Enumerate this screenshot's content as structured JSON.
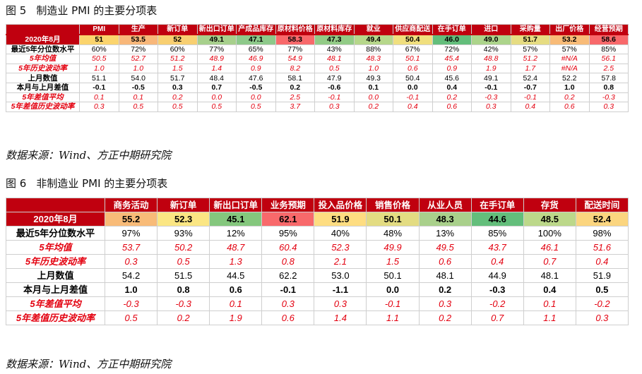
{
  "figure5": {
    "label": "图 5",
    "title": "制造业 PMI 的主要分项表",
    "source": "数据来源：Wind、方正中期研究院",
    "columns": [
      "PMI",
      "生产",
      "新订单",
      "新出口订单",
      "产成品库存",
      "原材料价格",
      "原材料库存",
      "就业",
      "供应商配送",
      "在手订单",
      "进口",
      "采购量",
      "出厂价格",
      "经营预期"
    ],
    "rows": [
      {
        "label": "2020年8月",
        "style": "date",
        "values": [
          "51",
          "53.5",
          "52",
          "49.1",
          "47.1",
          "58.3",
          "47.3",
          "49.4",
          "50.4",
          "46.0",
          "49.0",
          "51.7",
          "53.2",
          "58.6"
        ],
        "colors": [
          "#fbd46d",
          "#f8b77a",
          "#f8cf71",
          "#a7d08c",
          "#8dc98a",
          "#f8696b",
          "#92cb86",
          "#b6d78b",
          "#f0df7e",
          "#63be7b",
          "#acd48b",
          "#e6dc82",
          "#f8bb78",
          "#f8696b"
        ]
      },
      {
        "label": "最近5年分位数水平",
        "style": "plain",
        "values": [
          "60%",
          "72%",
          "60%",
          "77%",
          "65%",
          "77%",
          "43%",
          "88%",
          "67%",
          "72%",
          "42%",
          "57%",
          "57%",
          "85%"
        ]
      },
      {
        "label": "5年均值",
        "style": "red",
        "values": [
          "50.5",
          "52.7",
          "51.2",
          "48.9",
          "46.9",
          "54.9",
          "48.1",
          "48.3",
          "50.1",
          "45.4",
          "48.8",
          "51.2",
          "#N/A",
          "56.1"
        ]
      },
      {
        "label": "5年历史波动率",
        "style": "red",
        "values": [
          "1.0",
          "1.0",
          "1.5",
          "1.4",
          "0.9",
          "8.2",
          "0.5",
          "1.0",
          "0.6",
          "0.9",
          "1.9",
          "1.7",
          "#N/A",
          "2.5"
        ]
      },
      {
        "label": "上月数值",
        "style": "plain",
        "values": [
          "51.1",
          "54.0",
          "51.7",
          "48.4",
          "47.6",
          "58.1",
          "47.9",
          "49.3",
          "50.4",
          "45.6",
          "49.1",
          "52.4",
          "52.2",
          "57.8"
        ]
      },
      {
        "label": "本月与上月差值",
        "style": "bold",
        "values": [
          "-0.1",
          "-0.5",
          "0.3",
          "0.7",
          "-0.5",
          "0.2",
          "-0.6",
          "0.1",
          "0.0",
          "0.4",
          "-0.1",
          "-0.7",
          "1.0",
          "0.8"
        ]
      },
      {
        "label": "5年差值平均",
        "style": "red",
        "values": [
          "0.1",
          "0.1",
          "0.2",
          "0.0",
          "0.0",
          "2.5",
          "-0.1",
          "0.0",
          "-0.1",
          "0.2",
          "-0.3",
          "-0.1",
          "0.2",
          "-0.3"
        ]
      },
      {
        "label": "5年差值历史波动率",
        "style": "red",
        "values": [
          "0.3",
          "0.5",
          "0.5",
          "0.5",
          "0.5",
          "3.7",
          "0.3",
          "0.2",
          "0.4",
          "0.6",
          "0.3",
          "0.4",
          "0.6",
          "0.3"
        ]
      }
    ]
  },
  "figure6": {
    "label": "图 6",
    "title": "非制造业 PMI 的主要分项表",
    "source": "数据来源：Wind、方正中期研究院",
    "columns": [
      "商务活动",
      "新订单",
      "新出口订单",
      "业务预期",
      "投入品价格",
      "销售价格",
      "从业人员",
      "在手订单",
      "存货",
      "配送时间"
    ],
    "rows": [
      {
        "label": "2020年8月",
        "style": "date",
        "values": [
          "55.2",
          "52.3",
          "45.1",
          "62.1",
          "51.9",
          "50.1",
          "48.3",
          "44.6",
          "48.5",
          "52.4"
        ],
        "colors": [
          "#f8bb78",
          "#fbe683",
          "#84c77d",
          "#f8696b",
          "#fedd81",
          "#e3dc82",
          "#a9d08b",
          "#63be7b",
          "#bcd88a",
          "#fbd57f"
        ]
      },
      {
        "label": "最近5年分位数水平",
        "style": "plain",
        "values": [
          "97%",
          "93%",
          "12%",
          "95%",
          "40%",
          "48%",
          "13%",
          "85%",
          "100%",
          "98%"
        ]
      },
      {
        "label": "5年均值",
        "style": "red",
        "values": [
          "53.7",
          "50.2",
          "48.7",
          "60.4",
          "52.3",
          "49.9",
          "49.5",
          "43.7",
          "46.1",
          "51.6"
        ]
      },
      {
        "label": "5年历史波动率",
        "style": "red",
        "values": [
          "0.3",
          "0.5",
          "1.3",
          "0.8",
          "2.1",
          "1.5",
          "0.6",
          "0.4",
          "0.7",
          "0.4"
        ]
      },
      {
        "label": "上月数值",
        "style": "plain",
        "values": [
          "54.2",
          "51.5",
          "44.5",
          "62.2",
          "53.0",
          "50.1",
          "48.1",
          "44.9",
          "48.1",
          "51.9"
        ]
      },
      {
        "label": "本月与上月差值",
        "style": "bold",
        "values": [
          "1.0",
          "0.8",
          "0.6",
          "-0.1",
          "-1.1",
          "0.0",
          "0.2",
          "-0.3",
          "0.4",
          "0.5"
        ]
      },
      {
        "label": "5年差值平均",
        "style": "red",
        "values": [
          "-0.3",
          "-0.3",
          "0.1",
          "0.3",
          "0.3",
          "-0.1",
          "0.3",
          "-0.2",
          "0.1",
          "-0.2"
        ]
      },
      {
        "label": "5年差值历史波动率",
        "style": "red",
        "values": [
          "0.5",
          "0.2",
          "1.9",
          "0.6",
          "1.4",
          "1.1",
          "0.2",
          "0.7",
          "1.1",
          "0.3"
        ]
      }
    ]
  }
}
